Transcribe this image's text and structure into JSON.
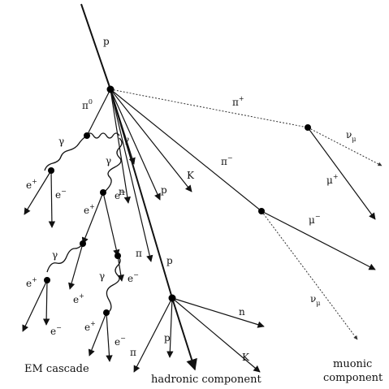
{
  "labels": {
    "p_in": "p",
    "pi0": "π",
    "pi0_sup": "0",
    "pi_plus": "π",
    "pi_plus_sup": "+",
    "pi_minus": "π",
    "pi_minus_sup": "−",
    "gamma1": "γ",
    "gamma2": "γ",
    "gamma3": "γ",
    "gamma4": "γ",
    "e_plus": "e",
    "e_plus_sup": "+",
    "e_minus": "e",
    "e_minus_sup": "−",
    "n": "n",
    "p": "p",
    "K": "K",
    "pi": "π",
    "nu": "ν",
    "nu_sub": "μ",
    "mu": "μ",
    "mu_plus_sup": "+",
    "mu_minus_sup": "−"
  },
  "captions": {
    "em": "EM cascade",
    "hadronic": "hadronic component",
    "muonic_1": "muonic",
    "muonic_2": "component"
  }
}
